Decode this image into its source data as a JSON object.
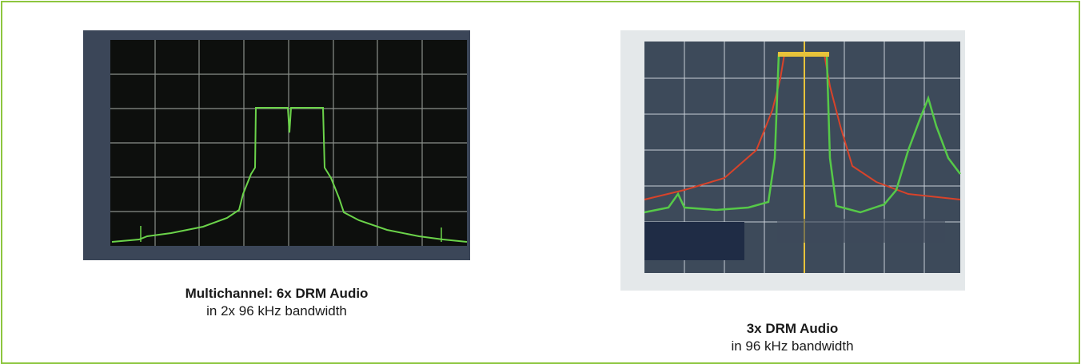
{
  "figures": [
    {
      "caption": {
        "title": "Multichannel: 6x DRM Audio",
        "subtitle": "in 2x 96 kHz bandwidth"
      }
    },
    {
      "caption": {
        "title": "3x DRM Audio",
        "subtitle": "in 96 kHz bandwidth"
      }
    }
  ]
}
